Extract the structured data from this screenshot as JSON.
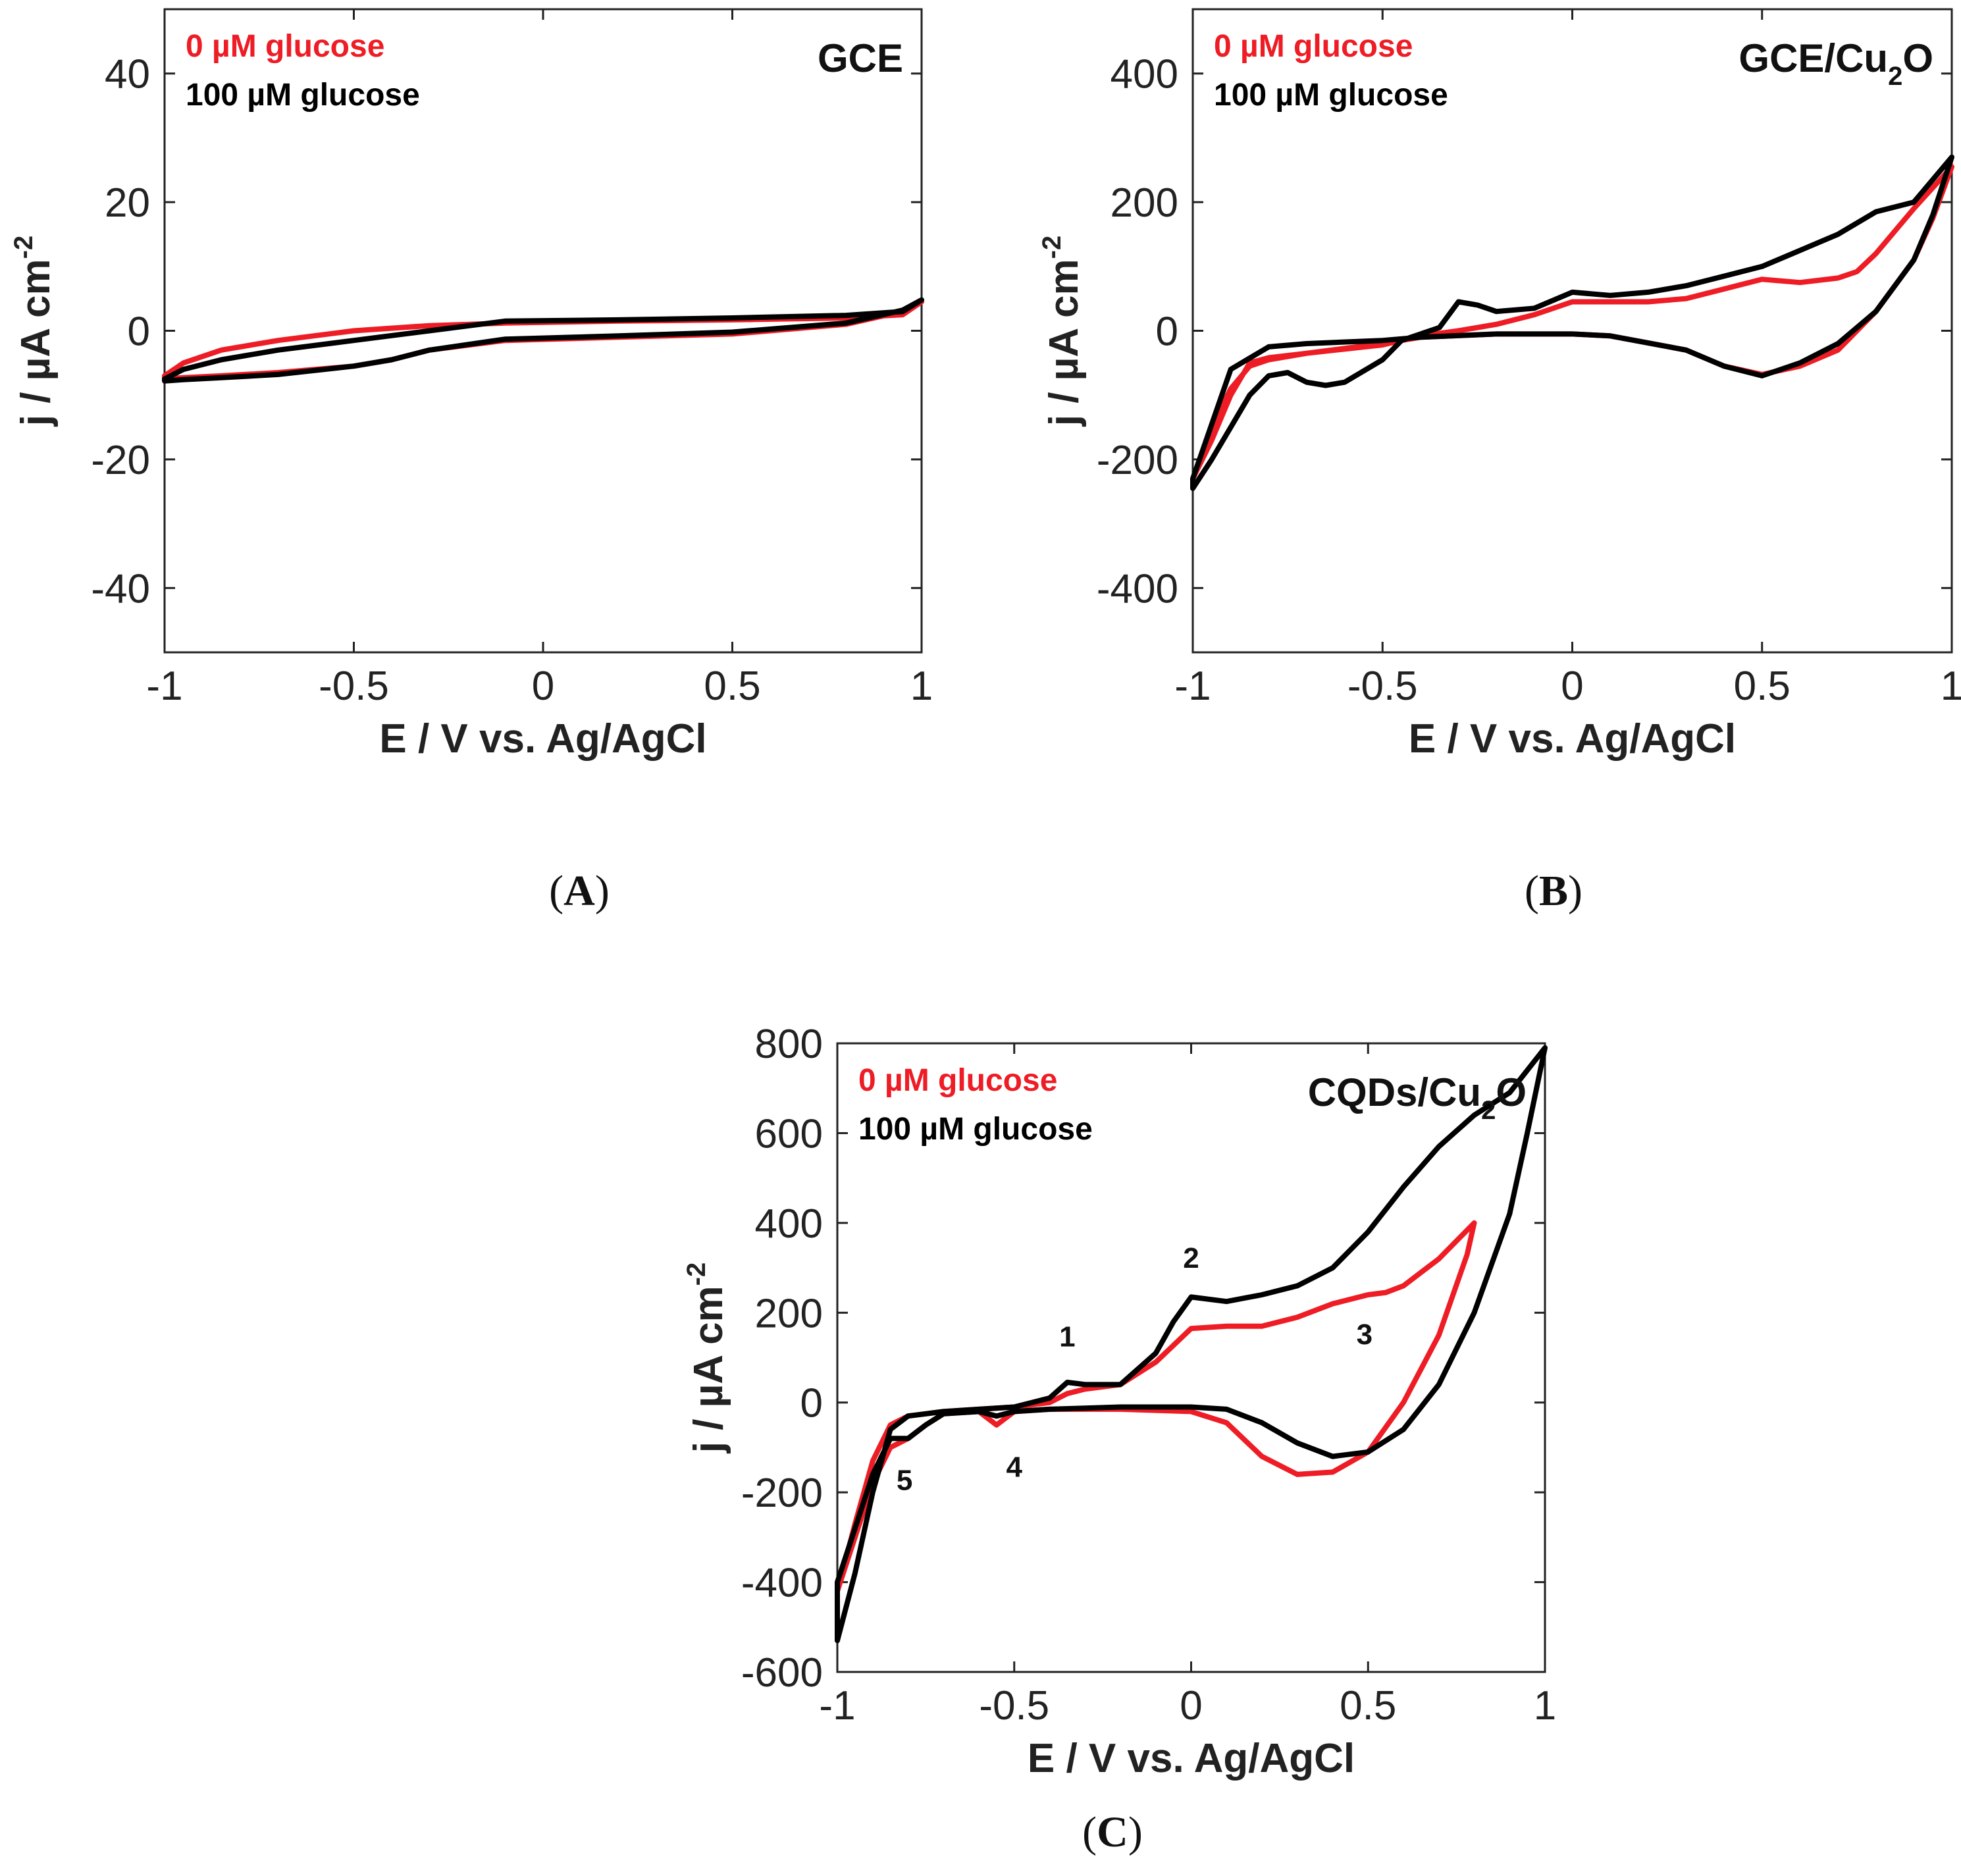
{
  "figure": {
    "colors": {
      "zero_glucose": "#ee1c25",
      "hundred_glucose": "#000000"
    }
  },
  "chart_data": [
    {
      "id": "A",
      "type": "line",
      "caption": "A",
      "title": "GCE",
      "title_sub": "",
      "title_tail": "",
      "xlabel": "E / V vs. Ag/AgCl",
      "ylabel": "j / µA cm",
      "ylabel_sup": "-2",
      "xlim": [
        -1,
        1
      ],
      "ylim": [
        -50,
        50
      ],
      "xticks": [
        -1,
        -0.5,
        0,
        0.5,
        1
      ],
      "xtick_labels": [
        "-1",
        "-0.5",
        "0",
        "0.5",
        "1"
      ],
      "yticks": [
        -40,
        -20,
        0,
        20,
        40
      ],
      "ytick_labels": [
        "-40",
        "-20",
        "0",
        "20",
        "40"
      ],
      "legend": [
        "0 µM glucose",
        "100 µM glucose"
      ],
      "annotations": [],
      "series": [
        {
          "name": "0 µM glucose",
          "color": "#ee1c25",
          "x": [
            -1,
            -0.95,
            -0.85,
            -0.7,
            -0.5,
            -0.3,
            -0.1,
            0.2,
            0.5,
            0.8,
            0.95,
            1,
            0.95,
            0.8,
            0.5,
            0.2,
            -0.1,
            -0.3,
            -0.4,
            -0.5,
            -0.7,
            -0.85,
            -0.95,
            -1
          ],
          "y": [
            -7,
            -5,
            -3,
            -1.5,
            0,
            0.8,
            1.2,
            1.5,
            1.7,
            2.0,
            2.5,
            4.5,
            3,
            1,
            -0.5,
            -1.0,
            -1.5,
            -3,
            -4.5,
            -5.5,
            -6.5,
            -7,
            -7.3,
            -7.5
          ]
        },
        {
          "name": "100 µM glucose",
          "color": "#000000",
          "x": [
            -1,
            -0.95,
            -0.85,
            -0.7,
            -0.5,
            -0.3,
            -0.1,
            0.2,
            0.5,
            0.8,
            0.95,
            1,
            0.95,
            0.8,
            0.5,
            0.2,
            -0.1,
            -0.3,
            -0.4,
            -0.5,
            -0.7,
            -0.85,
            -0.95,
            -1
          ],
          "y": [
            -7.5,
            -6,
            -4.5,
            -3,
            -1.5,
            0,
            1.5,
            1.7,
            2.0,
            2.4,
            3,
            4.8,
            3.2,
            1.2,
            -0.2,
            -0.8,
            -1.3,
            -3,
            -4.5,
            -5.5,
            -6.8,
            -7.3,
            -7.6,
            -7.8
          ]
        }
      ]
    },
    {
      "id": "B",
      "type": "line",
      "caption": "B",
      "title": "GCE/Cu",
      "title_sub": "2",
      "title_tail": "O",
      "xlabel": "E / V vs. Ag/AgCl",
      "ylabel": "j / µA cm",
      "ylabel_sup": "-2",
      "xlim": [
        -1,
        1
      ],
      "ylim": [
        -500,
        500
      ],
      "xticks": [
        -1,
        -0.5,
        0,
        0.5,
        1
      ],
      "xtick_labels": [
        "-1",
        "-0.5",
        "0",
        "0.5",
        "1"
      ],
      "yticks": [
        -400,
        -200,
        0,
        200,
        400
      ],
      "ytick_labels": [
        "-400",
        "-200",
        "0",
        "200",
        "400"
      ],
      "legend": [
        "0 µM glucose",
        "100 µM glucose"
      ],
      "annotations": [],
      "series": [
        {
          "name": "0 µM glucose",
          "color": "#ee1c25",
          "x": [
            -1,
            -0.95,
            -0.9,
            -0.85,
            -0.8,
            -0.7,
            -0.5,
            -0.4,
            -0.3,
            -0.2,
            -0.1,
            0,
            0.1,
            0.2,
            0.3,
            0.4,
            0.5,
            0.6,
            0.7,
            0.75,
            0.8,
            0.9,
            1,
            0.95,
            0.9,
            0.8,
            0.7,
            0.6,
            0.5,
            0.4,
            0.3,
            0.1,
            0,
            -0.2,
            -0.4,
            -0.5,
            -0.7,
            -0.8,
            -0.85,
            -0.9,
            -0.95,
            -1
          ],
          "y": [
            -230,
            -170,
            -100,
            -50,
            -42,
            -35,
            -22,
            -8,
            0,
            10,
            25,
            45,
            45,
            45,
            50,
            65,
            80,
            75,
            82,
            92,
            120,
            190,
            255,
            175,
            110,
            30,
            -30,
            -55,
            -68,
            -55,
            -30,
            -8,
            -5,
            -5,
            -10,
            -20,
            -35,
            -45,
            -55,
            -90,
            -150,
            -230
          ]
        },
        {
          "name": "100 µM glucose",
          "color": "#000000",
          "x": [
            -1,
            -0.95,
            -0.9,
            -0.85,
            -0.8,
            -0.75,
            -0.7,
            -0.65,
            -0.6,
            -0.5,
            -0.45,
            -0.35,
            -0.3,
            -0.25,
            -0.2,
            -0.1,
            0,
            0.1,
            0.2,
            0.3,
            0.4,
            0.5,
            0.6,
            0.7,
            0.8,
            0.9,
            1,
            0.95,
            0.9,
            0.8,
            0.7,
            0.6,
            0.5,
            0.4,
            0.3,
            0.1,
            0,
            -0.2,
            -0.4,
            -0.5,
            -0.7,
            -0.8,
            -0.9,
            -1
          ],
          "y": [
            -245,
            -200,
            -150,
            -100,
            -70,
            -65,
            -80,
            -85,
            -80,
            -45,
            -15,
            5,
            45,
            40,
            30,
            35,
            60,
            55,
            60,
            70,
            85,
            100,
            125,
            150,
            185,
            200,
            270,
            180,
            110,
            30,
            -20,
            -50,
            -70,
            -55,
            -30,
            -8,
            -5,
            -5,
            -10,
            -15,
            -20,
            -25,
            -60,
            -230
          ]
        }
      ]
    },
    {
      "id": "C",
      "type": "line",
      "caption": "C",
      "title": "CQDs/Cu",
      "title_sub": "2",
      "title_tail": "O",
      "xlabel": "E / V vs. Ag/AgCl",
      "ylabel": "j / µA cm",
      "ylabel_sup": "-2",
      "xlim": [
        -1,
        1
      ],
      "ylim": [
        -600,
        800
      ],
      "xticks": [
        -1,
        -0.5,
        0,
        0.5,
        1
      ],
      "xtick_labels": [
        "-1",
        "-0.5",
        "0",
        "0.5",
        "1"
      ],
      "yticks": [
        -600,
        -400,
        -200,
        0,
        200,
        400,
        600,
        800
      ],
      "ytick_labels": [
        "-600",
        "-400",
        "-200",
        "0",
        "200",
        "400",
        "600",
        "800"
      ],
      "legend": [
        "0 µM glucose",
        "100 µM glucose"
      ],
      "annotations": [
        {
          "label": "1",
          "x": -0.35,
          "y": 125
        },
        {
          "label": "2",
          "x": 0.0,
          "y": 300
        },
        {
          "label": "3",
          "x": 0.49,
          "y": 130
        },
        {
          "label": "4",
          "x": -0.5,
          "y": -165
        },
        {
          "label": "5",
          "x": -0.81,
          "y": -195
        }
      ],
      "series": [
        {
          "name": "0 µM glucose",
          "color": "#ee1c25",
          "x": [
            -1,
            -0.95,
            -0.9,
            -0.85,
            -0.8,
            -0.7,
            -0.6,
            -0.5,
            -0.4,
            -0.35,
            -0.3,
            -0.2,
            -0.1,
            0,
            0.1,
            0.2,
            0.3,
            0.4,
            0.5,
            0.55,
            0.6,
            0.7,
            0.8,
            0.78,
            0.7,
            0.6,
            0.5,
            0.4,
            0.3,
            0.2,
            0.1,
            0,
            -0.2,
            -0.4,
            -0.5,
            -0.55,
            -0.6,
            -0.7,
            -0.75,
            -0.8,
            -0.85,
            -0.9,
            -0.95,
            -1
          ],
          "y": [
            -420,
            -270,
            -130,
            -50,
            -30,
            -20,
            -15,
            -10,
            0,
            20,
            30,
            40,
            90,
            165,
            170,
            170,
            190,
            220,
            240,
            245,
            260,
            320,
            400,
            330,
            150,
            0,
            -110,
            -155,
            -160,
            -120,
            -45,
            -20,
            -15,
            -15,
            -20,
            -50,
            -20,
            -25,
            -50,
            -80,
            -100,
            -180,
            -300,
            -420
          ]
        },
        {
          "name": "100 µM glucose",
          "color": "#000000",
          "x": [
            -1,
            -0.95,
            -0.9,
            -0.85,
            -0.8,
            -0.7,
            -0.6,
            -0.5,
            -0.4,
            -0.35,
            -0.3,
            -0.2,
            -0.1,
            -0.05,
            0,
            0.1,
            0.2,
            0.3,
            0.4,
            0.5,
            0.6,
            0.7,
            0.8,
            0.9,
            1,
            0.95,
            0.9,
            0.8,
            0.7,
            0.6,
            0.5,
            0.4,
            0.3,
            0.2,
            0.1,
            0,
            -0.2,
            -0.4,
            -0.5,
            -0.55,
            -0.6,
            -0.7,
            -0.75,
            -0.8,
            -0.85,
            -0.9,
            -1
          ],
          "y": [
            -530,
            -380,
            -200,
            -60,
            -30,
            -20,
            -15,
            -10,
            10,
            45,
            40,
            40,
            110,
            180,
            235,
            225,
            240,
            260,
            300,
            380,
            480,
            570,
            640,
            690,
            790,
            600,
            420,
            200,
            40,
            -60,
            -110,
            -120,
            -90,
            -45,
            -15,
            -10,
            -10,
            -15,
            -20,
            -30,
            -20,
            -25,
            -50,
            -80,
            -80,
            -160,
            -400
          ]
        }
      ]
    }
  ]
}
